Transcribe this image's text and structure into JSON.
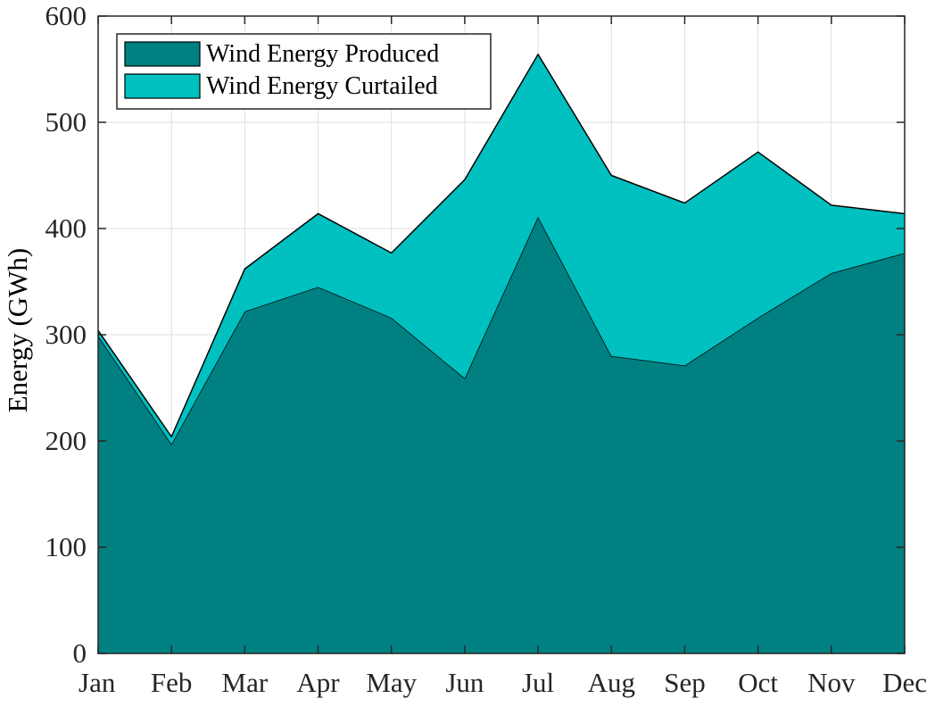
{
  "chart_data": {
    "type": "area",
    "stacked": true,
    "title": "",
    "xlabel": "",
    "ylabel": "Energy (GWh)",
    "categories": [
      "Jan",
      "Feb",
      "Mar",
      "Apr",
      "May",
      "Jun",
      "Jul",
      "Aug",
      "Sep",
      "Oct",
      "Nov",
      "Dec"
    ],
    "ylim": [
      0,
      600
    ],
    "yticks": [
      0,
      100,
      200,
      300,
      400,
      500,
      600
    ],
    "grid": true,
    "legend_position": "top-left",
    "series": [
      {
        "name": "Wind Energy Produced",
        "color": "#008080",
        "values": [
          299,
          197,
          322,
          345,
          316,
          259,
          411,
          280,
          271,
          316,
          358,
          377
        ]
      },
      {
        "name": "Wind Energy Curtailed",
        "color": "#00c0c0",
        "values": [
          5,
          7,
          40,
          69,
          61,
          187,
          153,
          170,
          153,
          156,
          64,
          37
        ]
      }
    ]
  }
}
